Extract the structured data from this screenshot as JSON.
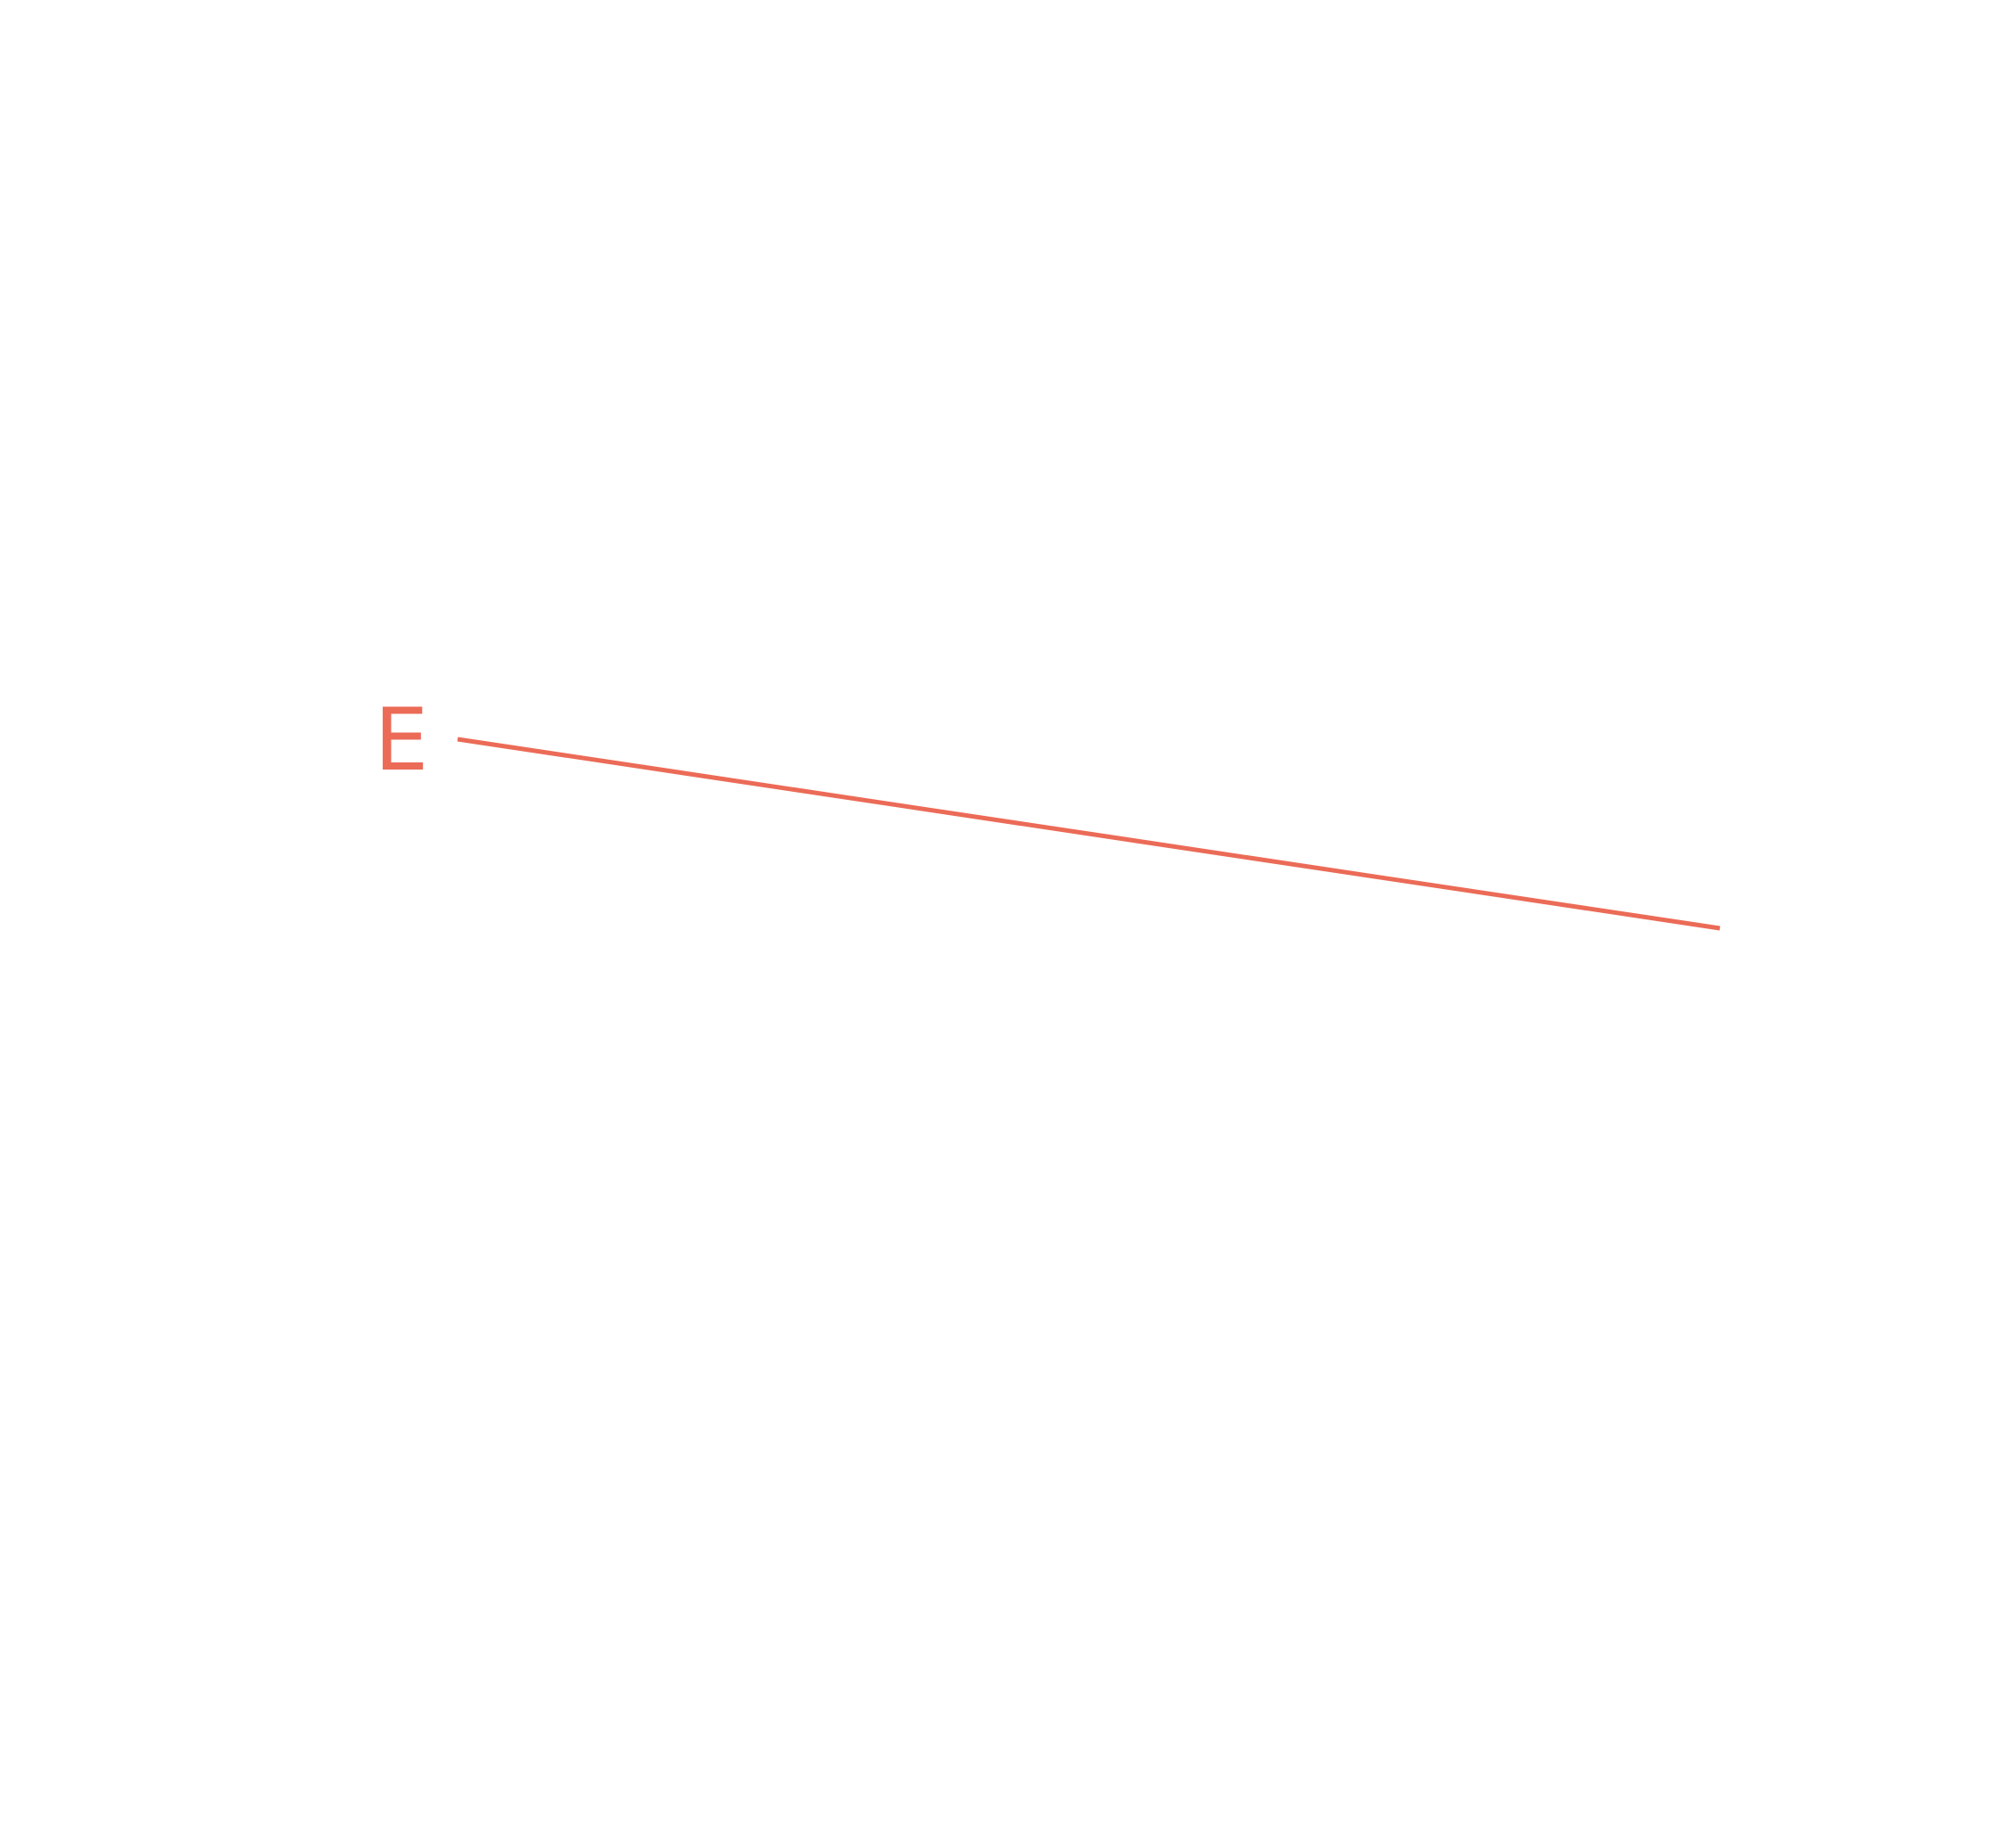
{
  "diagram": {
    "segments": [
      {
        "label": "E",
        "color": "#EB6B57"
      }
    ]
  }
}
